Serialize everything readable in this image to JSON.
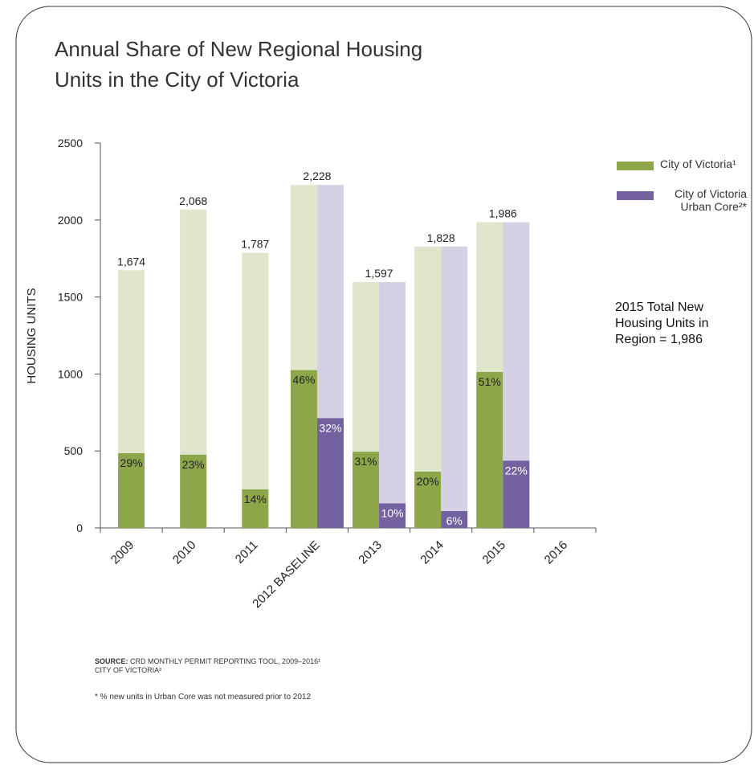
{
  "chart_data": {
    "type": "bar",
    "title": [
      "Annual Share of New Regional Housing",
      "Units in the City of Victoria"
    ],
    "y_label": "HOUSING UNITS",
    "categories": [
      "2009",
      "2010",
      "2011",
      "2012 BASELINE",
      "2013",
      "2014",
      "2015",
      "2016"
    ],
    "totals": {
      "values": [
        1674,
        2068,
        1787,
        2228,
        1597,
        1828,
        1986,
        null
      ],
      "value_labels": [
        "1,674",
        "2,068",
        "1,787",
        "2,228",
        "1,597",
        "1,828",
        "1,986",
        null
      ]
    },
    "series": [
      {
        "name": "City of Victoria¹",
        "color": "#8ea64a",
        "light_color": "#dfe6cb",
        "values": [
          29,
          23,
          14,
          46,
          31,
          20,
          51,
          null
        ],
        "value_labels": [
          "29%",
          "23%",
          "14%",
          "46%",
          "31%",
          "20%",
          "51%",
          null
        ]
      },
      {
        "name": "City of Victoria Urban Core²*",
        "color": "#7461a0",
        "light_color": "#d5d0e3",
        "values": [
          null,
          null,
          null,
          32,
          10,
          6,
          22,
          null
        ],
        "value_labels": [
          null,
          null,
          null,
          "32%",
          "10%",
          "6%",
          "22%",
          null
        ]
      }
    ],
    "ylim": [
      0,
      2500
    ],
    "yticks": [
      0,
      500,
      1000,
      1500,
      2000,
      2500
    ],
    "annotation": "2015 Total New Housing Units in Region = 1,986",
    "source_label": "SOURCE:",
    "source": [
      "CRD MONTHLY PERMIT REPORTING TOOL, 2009–2016¹",
      "CITY OF VICTORIA²"
    ],
    "footnote": "* % new units in Urban Core was not measured prior to 2012"
  }
}
